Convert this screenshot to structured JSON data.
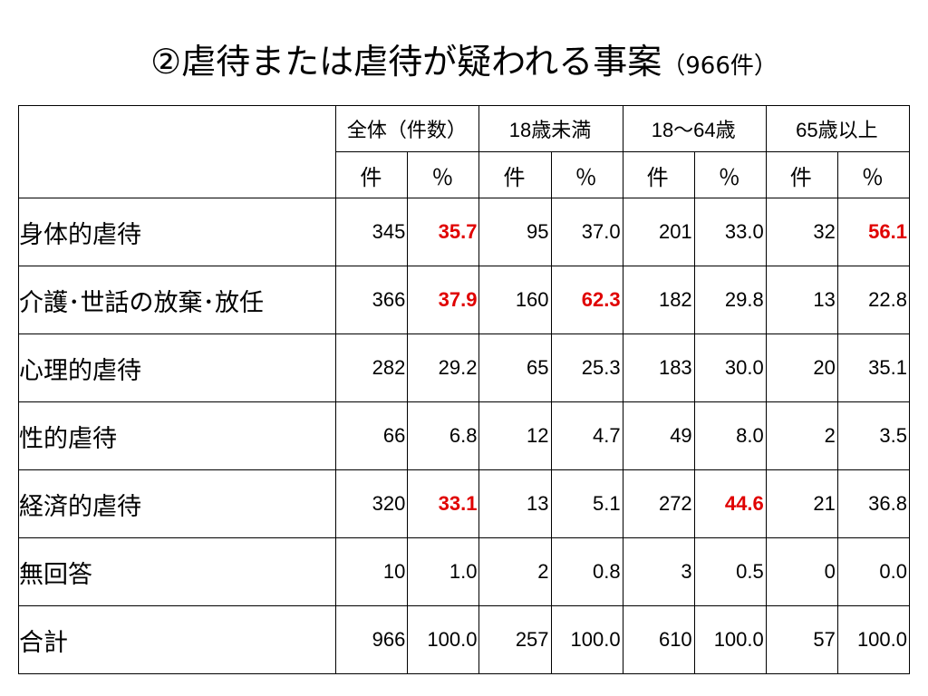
{
  "title": {
    "main": "②虐待または虐待が疑われる事案",
    "count": "（966件）"
  },
  "colors": {
    "highlight": "#e00000",
    "text": "#000000",
    "border": "#000000"
  },
  "table": {
    "groups": [
      "全体（件数）",
      "18歳未満",
      "18〜64歳",
      "65歳以上"
    ],
    "units": [
      "件",
      "％",
      "件",
      "％",
      "件",
      "％",
      "件",
      "％"
    ],
    "rows": [
      {
        "label": "身体的虐待",
        "cells": [
          "345",
          "35.7",
          "95",
          "37.0",
          "201",
          "33.0",
          "32",
          "56.1"
        ],
        "highlight": [
          false,
          true,
          false,
          false,
          false,
          false,
          false,
          true
        ]
      },
      {
        "label": "介護･世話の放棄･放任",
        "cells": [
          "366",
          "37.9",
          "160",
          "62.3",
          "182",
          "29.8",
          "13",
          "22.8"
        ],
        "highlight": [
          false,
          true,
          false,
          true,
          false,
          false,
          false,
          false
        ]
      },
      {
        "label": "心理的虐待",
        "cells": [
          "282",
          "29.2",
          "65",
          "25.3",
          "183",
          "30.0",
          "20",
          "35.1"
        ],
        "highlight": [
          false,
          false,
          false,
          false,
          false,
          false,
          false,
          false
        ]
      },
      {
        "label": "性的虐待",
        "cells": [
          "66",
          "6.8",
          "12",
          "4.7",
          "49",
          "8.0",
          "2",
          "3.5"
        ],
        "highlight": [
          false,
          false,
          false,
          false,
          false,
          false,
          false,
          false
        ]
      },
      {
        "label": "経済的虐待",
        "cells": [
          "320",
          "33.1",
          "13",
          "5.1",
          "272",
          "44.6",
          "21",
          "36.8"
        ],
        "highlight": [
          false,
          true,
          false,
          false,
          false,
          true,
          false,
          false
        ]
      },
      {
        "label": "無回答",
        "cells": [
          "10",
          "1.0",
          "2",
          "0.8",
          "3",
          "0.5",
          "0",
          "0.0"
        ],
        "highlight": [
          false,
          false,
          false,
          false,
          false,
          false,
          false,
          false
        ]
      },
      {
        "label": "合計",
        "cells": [
          "966",
          "100.0",
          "257",
          "100.0",
          "610",
          "100.0",
          "57",
          "100.0"
        ],
        "highlight": [
          false,
          false,
          false,
          false,
          false,
          false,
          false,
          false
        ]
      }
    ]
  }
}
